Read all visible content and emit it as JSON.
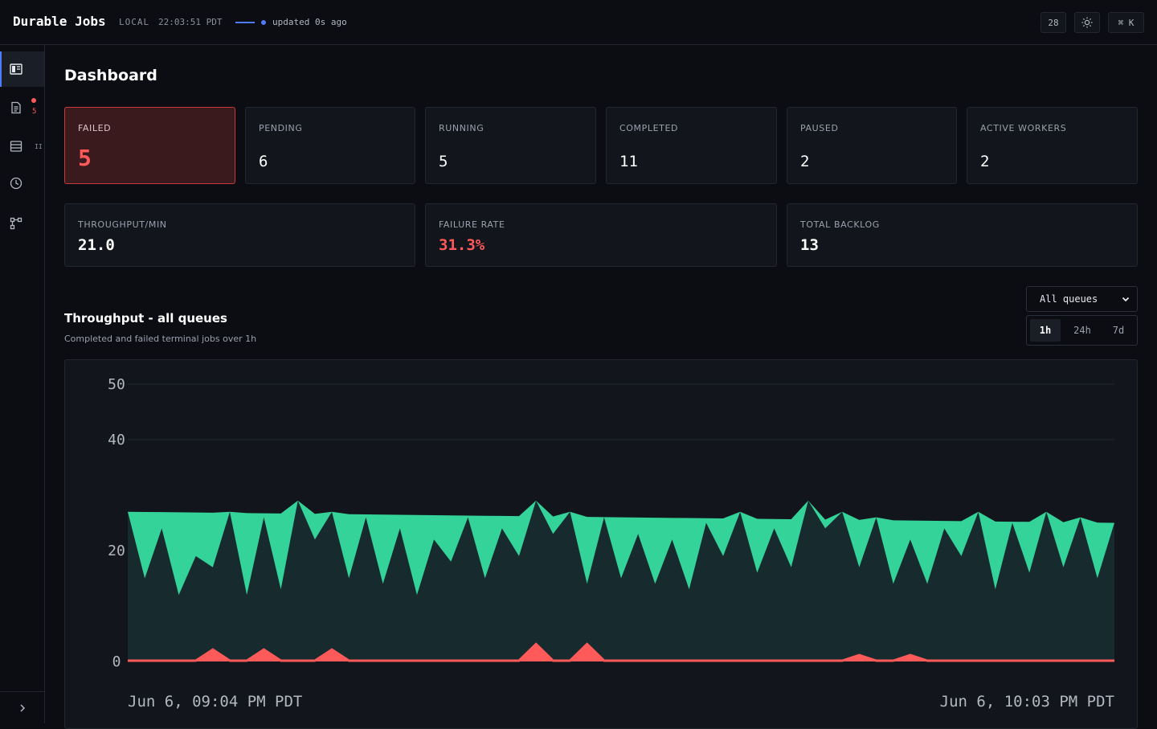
{
  "header": {
    "brand": "Durable Jobs",
    "env": "LOCAL",
    "clock": "22:03:51 PDT",
    "updated": "updated 0s ago",
    "count_button": "28",
    "theme_icon": "sun-icon",
    "shortcut_label": "⌘ K"
  },
  "sidebar": {
    "items": [
      {
        "name": "dashboard",
        "icon": "dashboard-icon",
        "active": true
      },
      {
        "name": "jobs",
        "icon": "document-icon",
        "badge": "5"
      },
      {
        "name": "queues",
        "icon": "list-icon",
        "badge": "II"
      },
      {
        "name": "schedules",
        "icon": "clock-icon"
      },
      {
        "name": "workflows",
        "icon": "workflow-icon"
      }
    ],
    "collapse_icon": "chevron-right-icon"
  },
  "page": {
    "title": "Dashboard"
  },
  "stats": {
    "failed": {
      "label": "FAILED",
      "value": "5"
    },
    "pending": {
      "label": "PENDING",
      "value": "6"
    },
    "running": {
      "label": "RUNNING",
      "value": "5"
    },
    "completed": {
      "label": "COMPLETED",
      "value": "11"
    },
    "paused": {
      "label": "PAUSED",
      "value": "2"
    },
    "active_workers": {
      "label": "ACTIVE WORKERS",
      "value": "2"
    },
    "throughput": {
      "label": "THROUGHPUT/MIN",
      "value": "21.0"
    },
    "failure_rate": {
      "label": "FAILURE RATE",
      "value": "31.3%"
    },
    "total_backlog": {
      "label": "TOTAL BACKLOG",
      "value": "13"
    }
  },
  "throughput_section": {
    "title": "Throughput - all queues",
    "subtitle": "Completed and failed terminal jobs over 1h",
    "queue_select": "All queues",
    "ranges": [
      "1h",
      "24h",
      "7d"
    ],
    "active_range": "1h"
  },
  "colors": {
    "completed": "#34d399",
    "failed": "#ff5a5a",
    "accent": "#4f7bff"
  },
  "chart_data": {
    "type": "area",
    "x_start_label": "Jun 6, 09:04 PM PDT",
    "x_end_label": "Jun 6, 10:03 PM PDT",
    "y_ticks": [
      0,
      20,
      40,
      50
    ],
    "ylim": [
      0,
      50
    ],
    "grid": true,
    "series": [
      {
        "values": [
          27,
          15,
          24,
          12,
          19,
          17,
          27,
          12,
          26,
          13,
          29,
          22,
          27,
          15,
          26,
          14,
          24,
          12,
          22,
          18,
          26,
          15,
          24,
          19,
          29,
          23,
          27,
          14,
          26,
          15,
          23,
          14,
          22,
          13,
          25,
          19,
          27,
          16,
          24,
          17,
          29,
          24,
          27,
          17,
          26,
          14,
          22,
          14,
          24,
          19,
          27,
          13,
          25,
          16,
          27,
          17,
          26,
          15,
          25
        ]
      },
      {
        "values": [
          0,
          0,
          0,
          0,
          0,
          0,
          0,
          0,
          0,
          0,
          0,
          0,
          0,
          0,
          0,
          0,
          0,
          0,
          0,
          0,
          0,
          0,
          0,
          0,
          0,
          0,
          0,
          0,
          0,
          0,
          0,
          0,
          0,
          0,
          0,
          0,
          0,
          0,
          0,
          0,
          0,
          0,
          0,
          0,
          0,
          0,
          0,
          0,
          0,
          0,
          0,
          0,
          0,
          0,
          0,
          0,
          0,
          0,
          0
        ],
        "spikes": [
          {
            "index": 5,
            "value": 2
          },
          {
            "index": 8,
            "value": 2
          },
          {
            "index": 12,
            "value": 2
          },
          {
            "index": 24,
            "value": 3
          },
          {
            "index": 27,
            "value": 3
          },
          {
            "index": 43,
            "value": 1
          },
          {
            "index": 46,
            "value": 1
          }
        ]
      }
    ]
  }
}
